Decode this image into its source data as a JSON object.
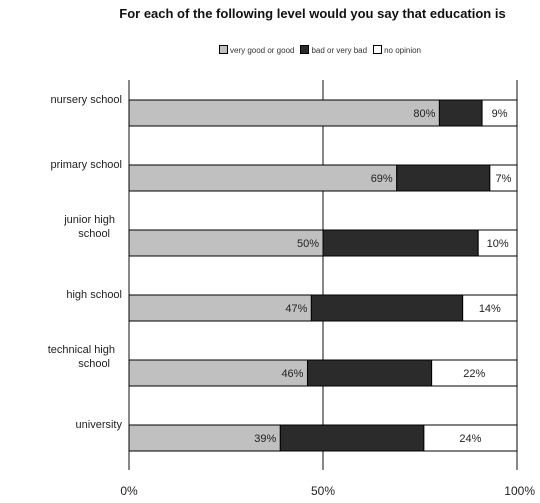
{
  "chart_data": {
    "type": "bar",
    "stacked": true,
    "orientation": "horizontal",
    "title": "For each of the following level would you say that education is",
    "categories": [
      "nursery school",
      "primary school",
      "junior high school",
      "high school",
      "technical high school",
      "university"
    ],
    "series": [
      {
        "name": "very good or good",
        "color": "#c0c0c0",
        "values": [
          80,
          69,
          50,
          47,
          46,
          39
        ]
      },
      {
        "name": "bad or very bad",
        "color": "#2b2b2b",
        "values": [
          11,
          24,
          40,
          39,
          32,
          37
        ]
      },
      {
        "name": "no opinion",
        "color": "#ffffff",
        "values": [
          9,
          7,
          10,
          14,
          22,
          24
        ]
      }
    ],
    "data_labels": [
      [
        "80%",
        "",
        "9%"
      ],
      [
        "69%",
        "",
        "7%"
      ],
      [
        "50%",
        "",
        "10%"
      ],
      [
        "47%",
        "",
        "14%"
      ],
      [
        "46%",
        "",
        "22%"
      ],
      [
        "39%",
        "",
        "24%"
      ]
    ],
    "x_ticks": [
      "0%",
      "50%",
      "100%"
    ],
    "xlim": [
      0,
      100
    ],
    "legend_position": "top",
    "grid": false
  }
}
